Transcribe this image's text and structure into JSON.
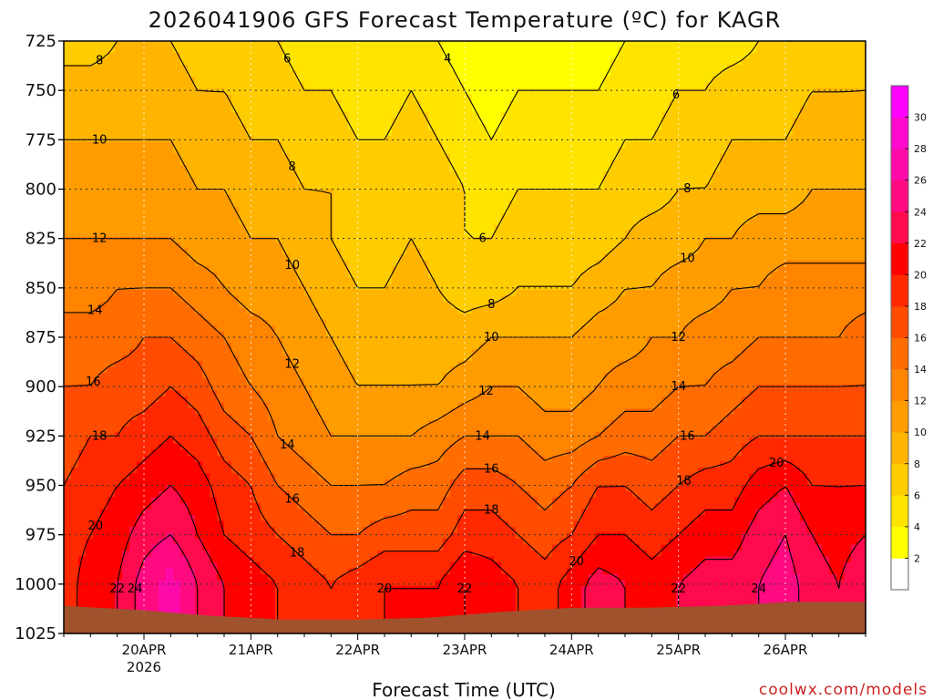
{
  "chart_data": {
    "type": "heatmap",
    "title": "2026041906 GFS Forecast Temperature (ºC) for KAGR",
    "xlabel": "Forecast Time (UTC)",
    "ylabel": "",
    "credit": "coolwx.com/models",
    "y_ticks": [
      "725",
      "750",
      "775",
      "800",
      "825",
      "850",
      "875",
      "900",
      "925",
      "950",
      "975",
      "1000",
      "1025"
    ],
    "y_tick_values": [
      725,
      750,
      775,
      800,
      825,
      850,
      875,
      900,
      925,
      950,
      975,
      1000,
      1025
    ],
    "ylim": [
      725,
      1025
    ],
    "x_ticks": [
      {
        "label": "20APR",
        "sub": "2026",
        "hours": 18
      },
      {
        "label": "21APR",
        "sub": "",
        "hours": 42
      },
      {
        "label": "22APR",
        "sub": "",
        "hours": 66
      },
      {
        "label": "23APR",
        "sub": "",
        "hours": 90
      },
      {
        "label": "24APR",
        "sub": "",
        "hours": 114
      },
      {
        "label": "25APR",
        "sub": "",
        "hours": 138
      },
      {
        "label": "26APR",
        "sub": "",
        "hours": 162
      }
    ],
    "xlim_hours": [
      0,
      180
    ],
    "colorbar": {
      "levels": [
        2,
        4,
        6,
        8,
        10,
        12,
        14,
        16,
        18,
        20,
        22,
        24,
        26,
        28,
        30
      ],
      "colors": [
        "#ffffff",
        "#ffff00",
        "#ffe400",
        "#ffcc00",
        "#ffb400",
        "#ff9c00",
        "#ff8400",
        "#ff6c00",
        "#ff4c00",
        "#ff2800",
        "#ff0000",
        "#ff0a4c",
        "#ff0a80",
        "#ff0aaa",
        "#ff0acc",
        "#ff00ff"
      ]
    },
    "surface_pressure_hpa": [
      1011,
      1013,
      1016,
      1018,
      1018,
      1017,
      1014,
      1012,
      1012,
      1011,
      1009,
      1009
    ],
    "surface_color": "#a0522d",
    "grid_times_hours": [
      0,
      6,
      12,
      18,
      24,
      30,
      36,
      42,
      48,
      54,
      60,
      66,
      72,
      78,
      84,
      90,
      96,
      102,
      108,
      114,
      120,
      126,
      132,
      138,
      144,
      150,
      156,
      162,
      168,
      174,
      180
    ],
    "grid_pressure_levels": [
      725,
      750,
      775,
      800,
      825,
      850,
      875,
      900,
      925,
      950,
      975,
      1000,
      1025
    ],
    "temperature_grid": [
      [
        7,
        7,
        8,
        8,
        8,
        7,
        6,
        6,
        6,
        5,
        5,
        4,
        4,
        5,
        4,
        3,
        2,
        3,
        3,
        3,
        3,
        4,
        4,
        5,
        5,
        5,
        6,
        6,
        6,
        6,
        7
      ],
      [
        9,
        9,
        9,
        9,
        9,
        8,
        8,
        7,
        7,
        6,
        6,
        5,
        5,
        6,
        5,
        4,
        3,
        4,
        4,
        4,
        4,
        5,
        5,
        6,
        6,
        7,
        7,
        7,
        8,
        8,
        8
      ],
      [
        10,
        10,
        10,
        10,
        10,
        9,
        9,
        8,
        8,
        7,
        7,
        6,
        6,
        7,
        6,
        5,
        4,
        5,
        5,
        5,
        5,
        6,
        6,
        7,
        7,
        8,
        8,
        8,
        9,
        9,
        9
      ],
      [
        11,
        11,
        11,
        11,
        11,
        10,
        10,
        9,
        9,
        8,
        8,
        7,
        7,
        8,
        7,
        6,
        5,
        6,
        6,
        6,
        6,
        7,
        7,
        8,
        8,
        9,
        9,
        9,
        10,
        10,
        10
      ],
      [
        12,
        12,
        12,
        12,
        12,
        11,
        11,
        10,
        10,
        9,
        8,
        7,
        7,
        8,
        7,
        6,
        6,
        7,
        7,
        7,
        7,
        8,
        9,
        9,
        10,
        10,
        11,
        11,
        11,
        11,
        11
      ],
      [
        13,
        13,
        14,
        14,
        14,
        13,
        12,
        11,
        11,
        10,
        9,
        8,
        8,
        9,
        8,
        7,
        7,
        8,
        8,
        8,
        9,
        10,
        10,
        11,
        11,
        12,
        12,
        13,
        13,
        13,
        13
      ],
      [
        15,
        15,
        15,
        16,
        16,
        15,
        14,
        13,
        12,
        11,
        10,
        9,
        9,
        9,
        9,
        9,
        10,
        10,
        10,
        10,
        11,
        11,
        12,
        12,
        13,
        13,
        14,
        14,
        14,
        14,
        15
      ],
      [
        16,
        16,
        17,
        17,
        18,
        17,
        15,
        14,
        13,
        12,
        11,
        10,
        10,
        10,
        10,
        11,
        12,
        12,
        11,
        11,
        12,
        13,
        13,
        14,
        14,
        15,
        16,
        16,
        16,
        16,
        16
      ],
      [
        17,
        18,
        18,
        19,
        20,
        19,
        17,
        16,
        14,
        13,
        12,
        12,
        12,
        12,
        13,
        14,
        14,
        14,
        13,
        13,
        14,
        15,
        15,
        16,
        16,
        17,
        18,
        18,
        18,
        18,
        18
      ],
      [
        18,
        19,
        20,
        21,
        22,
        21,
        19,
        18,
        16,
        15,
        14,
        14,
        14,
        15,
        15,
        17,
        17,
        16,
        15,
        16,
        18,
        18,
        17,
        18,
        19,
        19,
        21,
        22,
        20,
        20,
        20
      ],
      [
        19,
        20,
        21,
        23,
        24,
        22,
        20,
        19,
        18,
        17,
        16,
        16,
        17,
        17,
        17,
        19,
        19,
        18,
        17,
        18,
        20,
        20,
        19,
        20,
        21,
        21,
        23,
        24,
        22,
        21,
        22
      ],
      [
        19,
        21,
        22,
        25,
        27,
        24,
        22,
        21,
        20,
        19,
        18,
        19,
        20,
        20,
        20,
        22,
        21,
        20,
        19,
        21,
        23,
        22,
        21,
        22,
        23,
        23,
        24,
        25,
        23,
        22,
        24
      ],
      [
        19,
        21,
        22,
        25,
        27,
        24,
        22,
        21,
        20,
        19,
        18,
        19,
        20,
        20,
        20,
        22,
        21,
        20,
        19,
        21,
        23,
        22,
        21,
        22,
        23,
        23,
        24,
        25,
        23,
        22,
        24
      ]
    ]
  }
}
